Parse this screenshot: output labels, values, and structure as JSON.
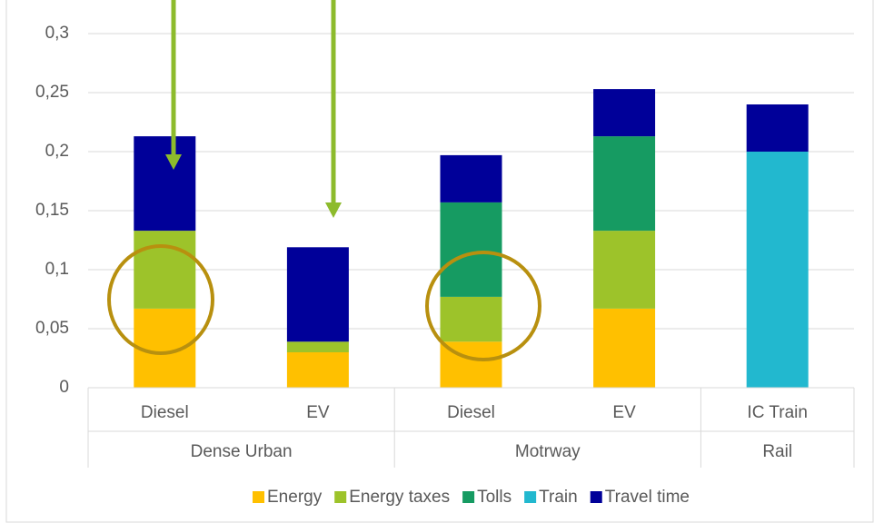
{
  "chart_data": {
    "type": "stacked_bar",
    "categories": [
      "Diesel",
      "EV",
      "Diesel",
      "EV",
      "IC Train"
    ],
    "category_groups": [
      "Dense Urban",
      "Dense Urban",
      "Motrway",
      "Motrway",
      "Rail"
    ],
    "series": [
      {
        "name": "Energy",
        "color": "#FFC000",
        "values": [
          0.067,
          0.03,
          0.039,
          0.067,
          0
        ]
      },
      {
        "name": "Energy taxes",
        "color": "#9DC32A",
        "values": [
          0.066,
          0.009,
          0.038,
          0.066,
          0
        ]
      },
      {
        "name": "Tolls",
        "color": "#169B62",
        "values": [
          0,
          0,
          0.08,
          0.08,
          0
        ]
      },
      {
        "name": "Train",
        "color": "#22B8CF",
        "values": [
          0,
          0,
          0,
          0,
          0.2
        ]
      },
      {
        "name": "Travel time",
        "color": "#000099",
        "values": [
          0.08,
          0.08,
          0.04,
          0.04,
          0.04
        ]
      }
    ],
    "ylim": [
      0,
      0.3
    ],
    "yticks": [
      0,
      {
        "value": 0.05,
        "label": "0,05"
      },
      {
        "value": 0.1,
        "label": "0,1"
      },
      {
        "value": 0.15,
        "label": "0,15"
      },
      {
        "value": 0.2,
        "label": "0,2"
      },
      {
        "value": 0.25,
        "label": "0,25"
      },
      {
        "value": 0.3,
        "label": "0,3"
      }
    ],
    "grid": true,
    "legend": "bottom"
  }
}
